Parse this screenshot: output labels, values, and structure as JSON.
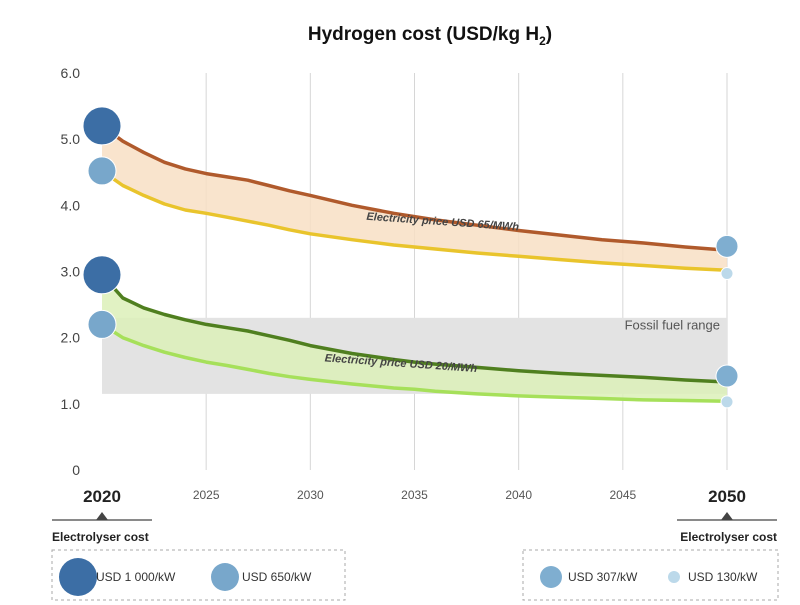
{
  "chart_data": {
    "type": "line",
    "title": "Hydrogen cost (USD/kg H",
    "title_subscript": "2",
    "title_close": ")",
    "xlim": [
      2020,
      2050
    ],
    "ylim": [
      0,
      6
    ],
    "x_ticks": [
      {
        "value": 2020,
        "label": "2020",
        "bold": true
      },
      {
        "value": 2025,
        "label": "2025",
        "bold": false
      },
      {
        "value": 2030,
        "label": "2030",
        "bold": false
      },
      {
        "value": 2035,
        "label": "2035",
        "bold": false
      },
      {
        "value": 2040,
        "label": "2040",
        "bold": false
      },
      {
        "value": 2045,
        "label": "2045",
        "bold": false
      },
      {
        "value": 2050,
        "label": "2050",
        "bold": true
      }
    ],
    "y_ticks": [
      {
        "value": 0,
        "label": "0"
      },
      {
        "value": 1,
        "label": "1.0"
      },
      {
        "value": 2,
        "label": "2.0"
      },
      {
        "value": 3,
        "label": "3.0"
      },
      {
        "value": 4,
        "label": "4.0"
      },
      {
        "value": 5,
        "label": "5.0"
      },
      {
        "value": 6,
        "label": "6.0"
      }
    ],
    "grid": "vertical",
    "fossil_fuel_range": {
      "label": "Fossil fuel range",
      "low": 1.15,
      "high": 2.3,
      "color": "#e3e3e3"
    },
    "bands": [
      {
        "label": "Electricity price USD 65/MWh",
        "fill": "#f8dfc4",
        "upper_color": "#b05a2c",
        "lower_color": "#e9c42c",
        "x": [
          2020,
          2021,
          2022,
          2023,
          2024,
          2025,
          2026,
          2027,
          2028,
          2029,
          2030,
          2032,
          2034,
          2035,
          2036,
          2038,
          2040,
          2042,
          2044,
          2046,
          2048,
          2050
        ],
        "upper": [
          5.2,
          4.97,
          4.8,
          4.65,
          4.55,
          4.48,
          4.43,
          4.38,
          4.3,
          4.22,
          4.15,
          4.0,
          3.88,
          3.83,
          3.78,
          3.7,
          3.62,
          3.55,
          3.48,
          3.43,
          3.37,
          3.32
        ],
        "lower": [
          4.52,
          4.3,
          4.15,
          4.02,
          3.93,
          3.88,
          3.82,
          3.76,
          3.7,
          3.63,
          3.57,
          3.48,
          3.4,
          3.37,
          3.34,
          3.28,
          3.23,
          3.18,
          3.13,
          3.09,
          3.05,
          3.02
        ]
      },
      {
        "label": "Electricity price USD 20/MWh",
        "fill": "#dcf0b8",
        "upper_color": "#4f7f1f",
        "lower_color": "#a6e05a",
        "x": [
          2020,
          2021,
          2022,
          2023,
          2024,
          2025,
          2026,
          2027,
          2028,
          2029,
          2030,
          2032,
          2034,
          2035,
          2036,
          2038,
          2040,
          2042,
          2044,
          2046,
          2048,
          2050
        ],
        "upper": [
          2.95,
          2.6,
          2.45,
          2.35,
          2.27,
          2.2,
          2.15,
          2.1,
          2.03,
          1.96,
          1.88,
          1.76,
          1.67,
          1.63,
          1.6,
          1.55,
          1.5,
          1.46,
          1.43,
          1.4,
          1.36,
          1.33
        ],
        "lower": [
          2.2,
          2.0,
          1.88,
          1.78,
          1.7,
          1.63,
          1.58,
          1.52,
          1.46,
          1.41,
          1.37,
          1.3,
          1.24,
          1.22,
          1.19,
          1.15,
          1.12,
          1.1,
          1.08,
          1.06,
          1.05,
          1.04
        ]
      }
    ],
    "markers": [
      {
        "x": 2020,
        "y": 5.2,
        "size": "large",
        "color": "#3c6ea5"
      },
      {
        "x": 2020,
        "y": 4.52,
        "size": "medium",
        "color": "#78a7cb"
      },
      {
        "x": 2020,
        "y": 2.95,
        "size": "large",
        "color": "#3c6ea5"
      },
      {
        "x": 2020,
        "y": 2.2,
        "size": "medium",
        "color": "#78a7cb"
      },
      {
        "x": 2050,
        "y": 3.38,
        "size": "small",
        "color": "#7faed0"
      },
      {
        "x": 2050,
        "y": 2.97,
        "size": "tiny",
        "color": "#bcd9ea"
      },
      {
        "x": 2050,
        "y": 1.42,
        "size": "small",
        "color": "#7faed0"
      },
      {
        "x": 2050,
        "y": 1.03,
        "size": "tiny",
        "color": "#bcd9ea"
      }
    ],
    "legend_left": {
      "title": "Electrolyser cost",
      "items": [
        {
          "label": "USD 1 000/kW",
          "size": "large",
          "color": "#3c6ea5"
        },
        {
          "label": "USD 650/kW",
          "size": "medium",
          "color": "#78a7cb"
        }
      ]
    },
    "legend_right": {
      "title": "Electrolyser cost",
      "items": [
        {
          "label": "USD 307/kW",
          "size": "small",
          "color": "#7faed0"
        },
        {
          "label": "USD 130/kW",
          "size": "tiny",
          "color": "#bcd9ea"
        }
      ]
    }
  }
}
